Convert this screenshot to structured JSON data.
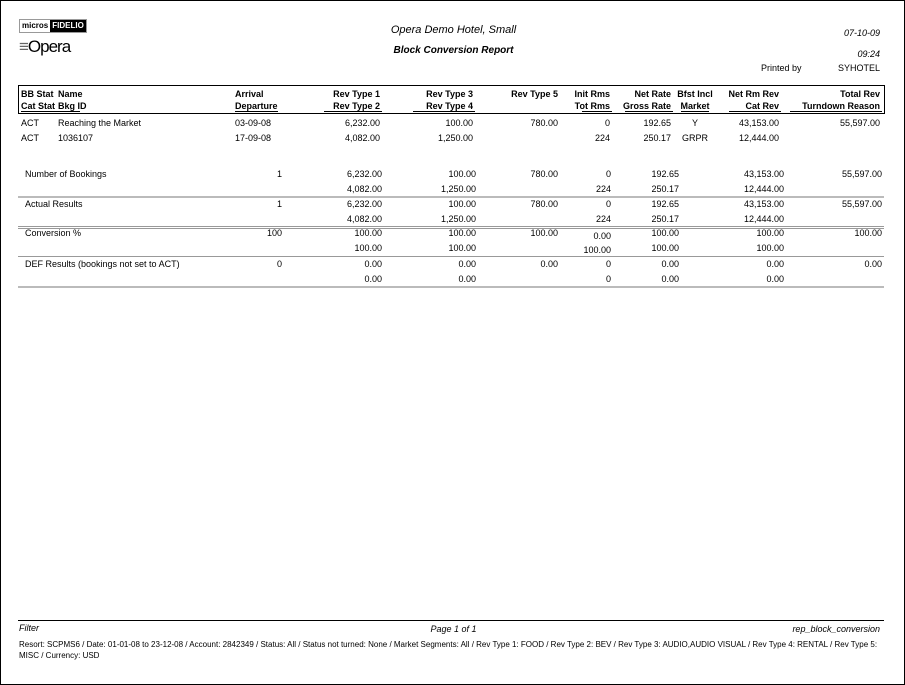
{
  "logo": {
    "micros": "micros",
    "fidelio": "FIDELIO",
    "opera": "Opera"
  },
  "header": {
    "hotel": "Opera Demo Hotel, Small",
    "title": "Block Conversion Report",
    "date": "07-10-09",
    "time": "09:24",
    "printed_by_label": "Printed by",
    "printed_by": "SYHOTEL"
  },
  "columns": {
    "row1": [
      "BB Stat",
      "Name",
      "Arrival",
      "Rev Type 1",
      "Rev Type 3",
      "Rev Type 5",
      "Init Rms",
      "Net Rate",
      "Bfst Incl",
      "Net Rm Rev",
      "Total Rev"
    ],
    "row2": [
      "Cat Stat",
      "Bkg ID",
      "Departure",
      "Rev Type 2",
      "Rev Type 4",
      "",
      "Tot Rms",
      "Gross Rate",
      "Market",
      "Cat Rev",
      "Turndown Reason"
    ]
  },
  "bookings": [
    {
      "row1": [
        "ACT",
        "Reaching the Market",
        "03-09-08",
        "6,232.00",
        "100.00",
        "780.00",
        "0",
        "192.65",
        "Y",
        "43,153.00",
        "55,597.00"
      ],
      "row2": [
        "ACT",
        "1036107",
        "17-09-08",
        "4,082.00",
        "1,250.00",
        "",
        "224",
        "250.17",
        "GRPR",
        "12,444.00",
        ""
      ]
    }
  ],
  "summary": [
    {
      "label": "Number of Bookings",
      "count": "1",
      "row1": [
        "6,232.00",
        "100.00",
        "780.00",
        "0",
        "192.65",
        "43,153.00",
        "55,597.00"
      ],
      "row2": [
        "4,082.00",
        "1,250.00",
        "",
        "224",
        "250.17",
        "12,444.00",
        ""
      ]
    },
    {
      "label": "Actual Results",
      "count": "1",
      "row1": [
        "6,232.00",
        "100.00",
        "780.00",
        "0",
        "192.65",
        "43,153.00",
        "55,597.00"
      ],
      "row2": [
        "4,082.00",
        "1,250.00",
        "",
        "224",
        "250.17",
        "12,444.00",
        ""
      ]
    },
    {
      "label": "Conversion %",
      "count": "100",
      "row1": [
        "100.00",
        "100.00",
        "100.00",
        "0.00",
        "100.00",
        "100.00",
        "100.00"
      ],
      "row2": [
        "100.00",
        "100.00",
        "",
        "100.00",
        "100.00",
        "100.00",
        ""
      ]
    },
    {
      "label": "DEF Results (bookings not set to ACT)",
      "count": "0",
      "row1": [
        "0.00",
        "0.00",
        "0.00",
        "0",
        "0.00",
        "0.00",
        "0.00"
      ],
      "row2": [
        "0.00",
        "0.00",
        "",
        "0",
        "0.00",
        "0.00",
        ""
      ]
    }
  ],
  "footer": {
    "filter_label": "Filter",
    "page": "Page 1 of 1",
    "report_name": "rep_block_conversion",
    "filter_text": "Resort: SCPMS6 / Date: 01-01-08 to 23-12-08 / Account: 2842349 / Status: All / Status not turned: None / Market Segments: All / Rev Type 1: FOOD / Rev Type 2: BEV / Rev Type 3: AUDIO,AUDIO VISUAL / Rev Type 4: RENTAL / Rev Type 5: MISC / Currency: USD"
  }
}
